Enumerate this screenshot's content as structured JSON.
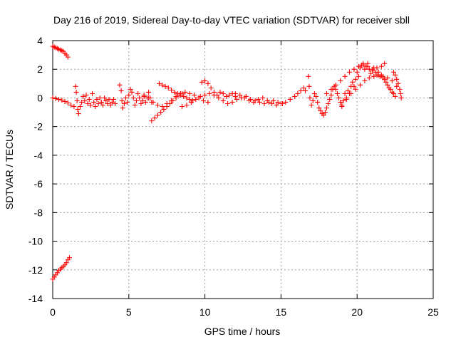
{
  "chart_data": {
    "type": "scatter",
    "title": "Day 216 of 2019, Sidereal Day-to-day VTEC variation (SDTVAR) for receiver sbll",
    "xlabel": "GPS time / hours",
    "ylabel": "SDTVAR / TECUs",
    "xlim": [
      0,
      25
    ],
    "ylim": [
      -14,
      4
    ],
    "xticks": [
      0,
      5,
      10,
      15,
      20,
      25
    ],
    "yticks": [
      -14,
      -12,
      -10,
      -8,
      -6,
      -4,
      -2,
      0,
      2,
      4
    ],
    "grid": true,
    "legend": "none",
    "marker": "plus",
    "color": "#ff0000",
    "series": [
      {
        "values": [
          [
            0.0,
            3.6
          ],
          [
            0.1,
            3.55
          ],
          [
            0.2,
            3.5
          ],
          [
            0.3,
            3.45
          ],
          [
            0.4,
            3.4
          ],
          [
            0.5,
            3.35
          ],
          [
            0.6,
            3.3
          ],
          [
            0.7,
            3.25
          ],
          [
            0.8,
            3.1
          ],
          [
            0.9,
            3.0
          ],
          [
            1.0,
            2.85
          ],
          [
            0.0,
            -12.65
          ],
          [
            0.1,
            -12.5
          ],
          [
            0.2,
            -12.35
          ],
          [
            0.3,
            -12.2
          ],
          [
            0.4,
            -12.05
          ],
          [
            0.5,
            -11.95
          ],
          [
            0.6,
            -11.85
          ],
          [
            0.7,
            -11.75
          ],
          [
            0.8,
            -11.65
          ],
          [
            0.9,
            -11.5
          ],
          [
            1.0,
            -11.3
          ],
          [
            1.1,
            -11.15
          ],
          [
            0.0,
            0.0
          ],
          [
            0.2,
            -0.05
          ],
          [
            0.4,
            -0.1
          ],
          [
            0.6,
            -0.15
          ],
          [
            0.8,
            -0.25
          ],
          [
            1.0,
            -0.35
          ],
          [
            1.2,
            -0.5
          ],
          [
            1.4,
            -0.6
          ],
          [
            1.5,
            0.8
          ],
          [
            1.55,
            0.4
          ],
          [
            1.6,
            -0.2
          ],
          [
            1.65,
            -0.8
          ],
          [
            1.7,
            -1.1
          ],
          [
            1.8,
            -0.6
          ],
          [
            1.9,
            -0.3
          ],
          [
            2.0,
            0.1
          ],
          [
            2.1,
            -0.2
          ],
          [
            2.2,
            0.2
          ],
          [
            2.3,
            -0.4
          ],
          [
            2.4,
            -0.1
          ],
          [
            2.5,
            -0.5
          ],
          [
            2.6,
            0.3
          ],
          [
            2.7,
            -0.3
          ],
          [
            2.8,
            -0.6
          ],
          [
            2.9,
            -0.1
          ],
          [
            3.0,
            -0.4
          ],
          [
            3.1,
            0.0
          ],
          [
            3.2,
            -0.3
          ],
          [
            3.3,
            -0.5
          ],
          [
            3.4,
            0.0
          ],
          [
            3.5,
            -0.2
          ],
          [
            3.6,
            -0.4
          ],
          [
            3.7,
            -0.1
          ],
          [
            3.8,
            -0.5
          ],
          [
            3.9,
            -0.3
          ],
          [
            4.0,
            -0.1
          ],
          [
            4.1,
            -0.4
          ],
          [
            4.4,
            0.9
          ],
          [
            4.5,
            0.5
          ],
          [
            4.55,
            -0.2
          ],
          [
            4.6,
            -0.7
          ],
          [
            4.7,
            -0.4
          ],
          [
            4.8,
            0.0
          ],
          [
            4.9,
            -0.3
          ],
          [
            5.0,
            0.2
          ],
          [
            5.1,
            0.6
          ],
          [
            5.2,
            0.4
          ],
          [
            5.3,
            0.0
          ],
          [
            5.4,
            -0.5
          ],
          [
            5.5,
            -0.2
          ],
          [
            5.6,
            0.3
          ],
          [
            5.7,
            0.0
          ],
          [
            5.8,
            -0.4
          ],
          [
            5.9,
            -0.2
          ],
          [
            6.0,
            0.1
          ],
          [
            6.1,
            -0.3
          ],
          [
            6.2,
            0.0
          ],
          [
            6.3,
            0.4
          ],
          [
            6.4,
            0.0
          ],
          [
            6.5,
            -0.3
          ],
          [
            6.5,
            -1.6
          ],
          [
            6.7,
            -1.4
          ],
          [
            6.9,
            -1.2
          ],
          [
            7.1,
            -1.0
          ],
          [
            7.3,
            -0.8
          ],
          [
            7.5,
            -0.6
          ],
          [
            7.7,
            -0.4
          ],
          [
            7.9,
            -0.2
          ],
          [
            8.1,
            0.0
          ],
          [
            8.3,
            0.2
          ],
          [
            8.5,
            0.3
          ],
          [
            7.0,
            1.0
          ],
          [
            7.2,
            0.9
          ],
          [
            7.4,
            0.8
          ],
          [
            7.6,
            0.7
          ],
          [
            7.8,
            0.55
          ],
          [
            8.0,
            0.4
          ],
          [
            8.2,
            0.3
          ],
          [
            8.4,
            0.2
          ],
          [
            8.6,
            0.1
          ],
          [
            8.8,
            0.0
          ],
          [
            9.0,
            -0.1
          ],
          [
            9.2,
            -0.2
          ],
          [
            6.0,
            0.2
          ],
          [
            6.3,
            0.0
          ],
          [
            6.6,
            -0.3
          ],
          [
            6.9,
            -0.5
          ],
          [
            7.2,
            -0.6
          ],
          [
            7.5,
            -0.4
          ],
          [
            7.8,
            -0.2
          ],
          [
            8.1,
            0.1
          ],
          [
            8.4,
            0.3
          ],
          [
            8.7,
            0.4
          ],
          [
            9.0,
            0.3
          ],
          [
            9.3,
            0.2
          ],
          [
            9.6,
            0.0
          ],
          [
            9.9,
            -0.2
          ],
          [
            10.2,
            -0.3
          ],
          [
            8.5,
            -0.6
          ],
          [
            8.8,
            -0.5
          ],
          [
            9.1,
            -0.3
          ],
          [
            9.4,
            -0.1
          ],
          [
            9.7,
            0.1
          ],
          [
            10.0,
            0.2
          ],
          [
            10.3,
            0.3
          ],
          [
            10.6,
            0.2
          ],
          [
            10.9,
            0.0
          ],
          [
            11.2,
            -0.2
          ],
          [
            9.8,
            1.1
          ],
          [
            10.0,
            1.2
          ],
          [
            10.2,
            1.0
          ],
          [
            10.4,
            0.7
          ],
          [
            10.6,
            0.4
          ],
          [
            10.8,
            0.2
          ],
          [
            11.0,
            0.4
          ],
          [
            11.2,
            0.3
          ],
          [
            11.4,
            0.1
          ],
          [
            11.6,
            0.2
          ],
          [
            11.8,
            0.3
          ],
          [
            12.0,
            0.1
          ],
          [
            11.5,
            -0.4
          ],
          [
            11.8,
            -0.3
          ],
          [
            12.1,
            -0.1
          ],
          [
            12.4,
            0.0
          ],
          [
            12.7,
            0.1
          ],
          [
            13.0,
            -0.1
          ],
          [
            13.3,
            -0.2
          ],
          [
            13.6,
            -0.3
          ],
          [
            13.9,
            -0.4
          ],
          [
            14.2,
            -0.3
          ],
          [
            14.5,
            -0.2
          ],
          [
            14.8,
            -0.3
          ],
          [
            15.1,
            -0.4
          ],
          [
            12.0,
            0.3
          ],
          [
            12.3,
            0.2
          ],
          [
            12.6,
            0.0
          ],
          [
            12.9,
            -0.2
          ],
          [
            13.2,
            -0.3
          ],
          [
            13.5,
            -0.1
          ],
          [
            13.8,
            0.0
          ],
          [
            14.1,
            -0.2
          ],
          [
            14.4,
            -0.4
          ],
          [
            14.7,
            -0.5
          ],
          [
            15.0,
            -0.4
          ],
          [
            15.3,
            -0.3
          ],
          [
            15.6,
            -0.1
          ],
          [
            15.9,
            0.1
          ],
          [
            16.1,
            0.3
          ],
          [
            16.3,
            0.5
          ],
          [
            16.5,
            0.7
          ],
          [
            16.6,
            0.5
          ],
          [
            16.8,
            1.5
          ],
          [
            16.85,
            0.8
          ],
          [
            16.9,
            0.0
          ],
          [
            17.0,
            -0.5
          ],
          [
            17.1,
            -0.2
          ],
          [
            17.2,
            0.3
          ],
          [
            17.3,
            0.1
          ],
          [
            17.4,
            -0.3
          ],
          [
            17.5,
            -0.7
          ],
          [
            17.6,
            -0.9
          ],
          [
            17.7,
            -1.1
          ],
          [
            17.8,
            -1.2
          ],
          [
            17.9,
            -1.0
          ],
          [
            18.0,
            -0.7
          ],
          [
            18.1,
            -0.4
          ],
          [
            18.2,
            -0.1
          ],
          [
            18.3,
            0.2
          ],
          [
            18.4,
            0.6
          ],
          [
            18.5,
            0.8
          ],
          [
            18.6,
            0.6
          ],
          [
            18.7,
            0.3
          ],
          [
            18.8,
            0.0
          ],
          [
            18.9,
            -0.3
          ],
          [
            19.0,
            -0.6
          ],
          [
            19.1,
            -0.2
          ],
          [
            19.2,
            0.3
          ],
          [
            19.3,
            0.0
          ],
          [
            19.4,
            0.5
          ],
          [
            19.5,
            0.3
          ],
          [
            19.6,
            0.8
          ],
          [
            19.7,
            1.1
          ],
          [
            19.8,
            0.8
          ],
          [
            19.9,
            1.3
          ],
          [
            20.0,
            1.8
          ],
          [
            20.1,
            1.5
          ],
          [
            20.2,
            2.1
          ],
          [
            20.3,
            2.3
          ],
          [
            20.4,
            2.4
          ],
          [
            20.5,
            2.0
          ],
          [
            20.6,
            2.2
          ],
          [
            20.7,
            2.4
          ],
          [
            20.8,
            2.0
          ],
          [
            20.9,
            1.7
          ],
          [
            21.0,
            1.9
          ],
          [
            21.1,
            2.1
          ],
          [
            21.2,
            1.8
          ],
          [
            21.3,
            1.6
          ],
          [
            21.4,
            1.8
          ],
          [
            21.5,
            1.5
          ],
          [
            21.6,
            1.6
          ],
          [
            21.7,
            1.4
          ],
          [
            21.8,
            1.3
          ],
          [
            21.9,
            1.1
          ],
          [
            22.0,
            0.9
          ],
          [
            22.1,
            0.7
          ],
          [
            22.2,
            0.6
          ],
          [
            22.3,
            0.4
          ],
          [
            22.4,
            0.3
          ],
          [
            22.5,
            0.1
          ],
          [
            18.0,
            0.3
          ],
          [
            18.3,
            0.6
          ],
          [
            18.6,
            0.9
          ],
          [
            18.9,
            1.2
          ],
          [
            19.2,
            1.5
          ],
          [
            19.5,
            1.8
          ],
          [
            19.8,
            2.0
          ],
          [
            20.1,
            2.2
          ],
          [
            20.4,
            2.3
          ],
          [
            20.7,
            2.2
          ],
          [
            21.0,
            2.0
          ],
          [
            21.3,
            2.1
          ],
          [
            21.6,
            2.2
          ],
          [
            21.8,
            2.4
          ],
          [
            19.0,
            -0.5
          ],
          [
            19.3,
            -0.1
          ],
          [
            19.6,
            0.3
          ],
          [
            19.9,
            0.6
          ],
          [
            20.2,
            0.9
          ],
          [
            20.5,
            1.2
          ],
          [
            20.8,
            1.4
          ],
          [
            21.1,
            1.5
          ],
          [
            21.4,
            1.6
          ],
          [
            21.7,
            1.5
          ],
          [
            22.0,
            1.4
          ],
          [
            22.3,
            1.2
          ],
          [
            22.6,
            0.8
          ],
          [
            22.4,
            1.8
          ],
          [
            22.5,
            1.6
          ],
          [
            22.6,
            1.3
          ],
          [
            22.7,
            1.0
          ],
          [
            22.8,
            0.6
          ],
          [
            22.85,
            0.3
          ],
          [
            22.9,
            0.0
          ]
        ]
      }
    ]
  }
}
